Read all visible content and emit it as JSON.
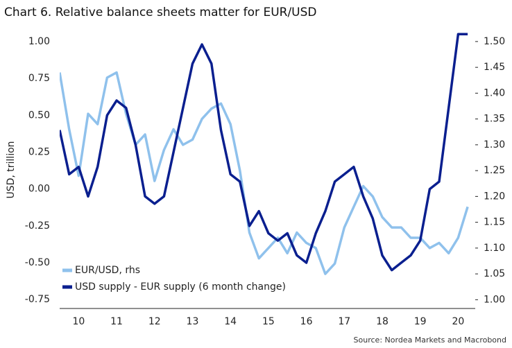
{
  "chart_data": {
    "type": "line",
    "title": "Chart 6. Relative balance sheets matter for EUR/USD",
    "y_label": "USD, trillion",
    "source": "Source: Nordea Markets and Macrobond",
    "x": [
      10,
      10.25,
      10.5,
      10.75,
      11,
      11.25,
      11.5,
      11.75,
      12,
      12.25,
      12.5,
      12.75,
      13,
      13.25,
      13.5,
      13.75,
      14,
      14.25,
      14.5,
      14.75,
      15,
      15.25,
      15.5,
      15.75,
      16,
      16.25,
      16.5,
      16.75,
      17,
      17.25,
      17.5,
      17.75,
      18,
      18.25,
      18.5,
      18.75,
      19,
      19.25,
      19.5,
      19.75,
      20,
      20.25,
      20.5,
      20.75
    ],
    "series": [
      {
        "name": "EUR/USD, rhs",
        "color": "#8fc1ec",
        "axis": "y2",
        "values": [
          1.44,
          1.33,
          1.24,
          1.36,
          1.34,
          1.43,
          1.44,
          1.36,
          1.3,
          1.32,
          1.23,
          1.29,
          1.33,
          1.3,
          1.31,
          1.35,
          1.37,
          1.38,
          1.34,
          1.25,
          1.13,
          1.08,
          1.1,
          1.12,
          1.09,
          1.13,
          1.11,
          1.1,
          1.05,
          1.07,
          1.14,
          1.18,
          1.22,
          1.2,
          1.16,
          1.14,
          1.14,
          1.12,
          1.12,
          1.1,
          1.11,
          1.09,
          1.12,
          1.18
        ]
      },
      {
        "name": "USD supply - EUR supply (6 month change)",
        "color": "#0a1f8f",
        "values": [
          0.4,
          0.1,
          0.15,
          -0.05,
          0.15,
          0.5,
          0.6,
          0.55,
          0.3,
          -0.05,
          -0.1,
          -0.05,
          0.25,
          0.55,
          0.85,
          0.98,
          0.85,
          0.4,
          0.1,
          0.05,
          -0.25,
          -0.15,
          -0.3,
          -0.35,
          -0.3,
          -0.45,
          -0.5,
          -0.3,
          -0.15,
          0.05,
          0.1,
          0.15,
          -0.05,
          -0.2,
          -0.45,
          -0.55,
          -0.5,
          -0.45,
          -0.35,
          0.0,
          0.05,
          0.55,
          1.05,
          1.05
        ]
      }
    ],
    "xlim": [
      10,
      20.95
    ],
    "xticks": [
      {
        "value": 10.5,
        "label": "10"
      },
      {
        "value": 11.5,
        "label": "11"
      },
      {
        "value": 12.5,
        "label": "12"
      },
      {
        "value": 13.5,
        "label": "13"
      },
      {
        "value": 14.5,
        "label": "14"
      },
      {
        "value": 15.5,
        "label": "15"
      },
      {
        "value": 16.5,
        "label": "16"
      },
      {
        "value": 17.5,
        "label": "17"
      },
      {
        "value": 18.5,
        "label": "18"
      },
      {
        "value": 19.5,
        "label": "19"
      },
      {
        "value": 20.5,
        "label": "20"
      }
    ],
    "ylim": [
      -0.81,
      1.07
    ],
    "yticks": [
      {
        "value": -0.75,
        "label": "-0.75"
      },
      {
        "value": -0.5,
        "label": "-0.50"
      },
      {
        "value": -0.25,
        "label": "-0.25"
      },
      {
        "value": 0,
        "label": "0.00"
      },
      {
        "value": 0.25,
        "label": "0.25"
      },
      {
        "value": 0.5,
        "label": "0.50"
      },
      {
        "value": 0.75,
        "label": "0.75"
      },
      {
        "value": 1,
        "label": "1.00"
      }
    ],
    "y2lim": [
      0.983,
      1.52
    ],
    "y2ticks": [
      {
        "value": 1,
        "label": "1.00"
      },
      {
        "value": 1.05,
        "label": "1.05"
      },
      {
        "value": 1.1,
        "label": "1.10"
      },
      {
        "value": 1.15,
        "label": "1.15"
      },
      {
        "value": 1.2,
        "label": "1.20"
      },
      {
        "value": 1.25,
        "label": "1.25"
      },
      {
        "value": 1.3,
        "label": "1.30"
      },
      {
        "value": 1.35,
        "label": "1.35"
      },
      {
        "value": 1.4,
        "label": "1.40"
      },
      {
        "value": 1.45,
        "label": "1.45"
      },
      {
        "value": 1.5,
        "label": "1.50"
      }
    ],
    "legend": "lower left"
  }
}
